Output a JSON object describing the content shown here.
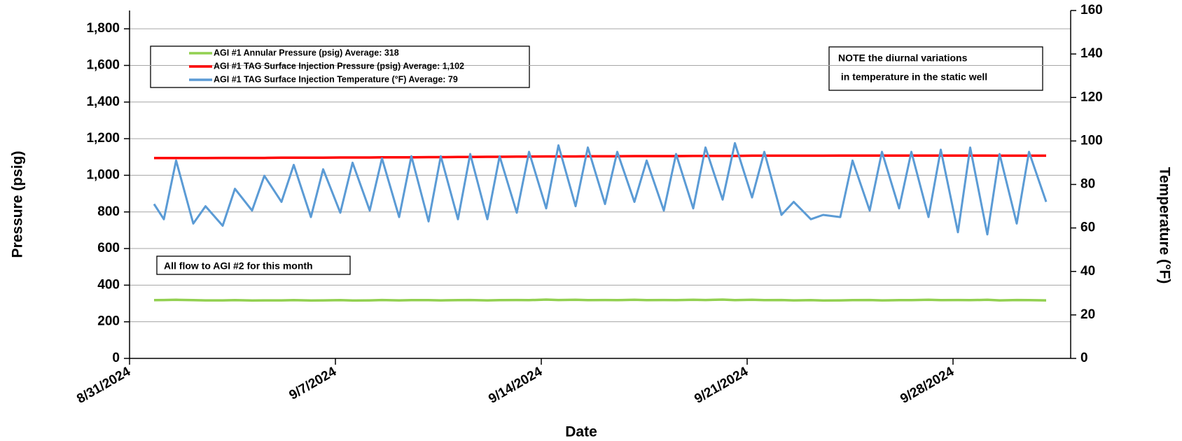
{
  "chart_data": {
    "type": "line",
    "x_label": "Date",
    "y_label": "Pressure (psig)",
    "y2_label": "Temperature (°F)",
    "annotations": [
      [
        "NOTE the diurnal variations",
        " in temperature in the static well"
      ],
      [
        "All flow to AGI #2 for this month"
      ]
    ],
    "x": [
      "8/31/2024 20:00",
      "9/1/2024 04:00",
      "9/1/2024 14:00",
      "9/2/2024 04:00",
      "9/2/2024 14:00",
      "9/3/2024 04:00",
      "9/3/2024 14:00",
      "9/4/2024 04:00",
      "9/4/2024 14:00",
      "9/5/2024 04:00",
      "9/5/2024 14:00",
      "9/6/2024 04:00",
      "9/6/2024 14:00",
      "9/7/2024 04:00",
      "9/7/2024 14:00",
      "9/8/2024 04:00",
      "9/8/2024 14:00",
      "9/9/2024 04:00",
      "9/9/2024 14:00",
      "9/10/2024 04:00",
      "9/10/2024 14:00",
      "9/11/2024 04:00",
      "9/11/2024 14:00",
      "9/12/2024 04:00",
      "9/12/2024 14:00",
      "9/13/2024 04:00",
      "9/13/2024 14:00",
      "9/14/2024 04:00",
      "9/14/2024 14:00",
      "9/15/2024 04:00",
      "9/15/2024 14:00",
      "9/16/2024 04:00",
      "9/16/2024 14:00",
      "9/17/2024 04:00",
      "9/17/2024 14:00",
      "9/18/2024 04:00",
      "9/18/2024 14:00",
      "9/19/2024 04:00",
      "9/19/2024 14:00",
      "9/20/2024 04:00",
      "9/20/2024 14:00",
      "9/21/2024 04:00",
      "9/21/2024 14:00",
      "9/22/2024 04:00",
      "9/22/2024 14:00",
      "9/23/2024 04:00",
      "9/23/2024 14:00",
      "9/24/2024 04:00",
      "9/24/2024 14:00",
      "9/25/2024 04:00",
      "9/25/2024 14:00",
      "9/26/2024 04:00",
      "9/26/2024 14:00",
      "9/27/2024 04:00",
      "9/27/2024 14:00",
      "9/28/2024 04:00",
      "9/28/2024 14:00",
      "9/29/2024 04:00",
      "9/29/2024 14:00",
      "9/30/2024 04:00",
      "9/30/2024 14:00",
      "10/1/2024 04:00"
    ],
    "series": [
      {
        "name": "AGI #1 Annular Pressure (psig) Average: 318",
        "color": "#92d050",
        "values": [
          318,
          319,
          320,
          318,
          317,
          317,
          318,
          316,
          317,
          317,
          318,
          316,
          317,
          318,
          316,
          317,
          319,
          317,
          318,
          318,
          317,
          318,
          319,
          317,
          318,
          319,
          318,
          321,
          319,
          320,
          318,
          319,
          318,
          320,
          318,
          319,
          318,
          320,
          319,
          321,
          318,
          320,
          318,
          319,
          317,
          318,
          316,
          317,
          318,
          319,
          317,
          318,
          318,
          320,
          318,
          319,
          318,
          320,
          317,
          319,
          318,
          317
        ]
      },
      {
        "name": "AGI #1 TAG Surface Injection Pressure (psig) Average: 1,102",
        "color": "#ff0000",
        "values": [
          1094,
          1094,
          1094,
          1094,
          1094,
          1095,
          1095,
          1095,
          1095,
          1096,
          1096,
          1096,
          1096,
          1097,
          1097,
          1097,
          1098,
          1098,
          1098,
          1099,
          1099,
          1100,
          1100,
          1101,
          1101,
          1102,
          1102,
          1103,
          1103,
          1103,
          1104,
          1104,
          1104,
          1105,
          1105,
          1105,
          1105,
          1106,
          1106,
          1106,
          1106,
          1107,
          1107,
          1107,
          1107,
          1107,
          1107,
          1108,
          1108,
          1108,
          1108,
          1108,
          1108,
          1108,
          1108,
          1108,
          1108,
          1108,
          1107,
          1107,
          1107,
          1107
        ]
      },
      {
        "name": "AGI #1 TAG Surface Injection Temperature (°F) Average: 79",
        "color": "#5b9bd5",
        "axis": "y2",
        "values": [
          71,
          64,
          91,
          62,
          70,
          61,
          78,
          68,
          84,
          72,
          89,
          65,
          87,
          67,
          90,
          68,
          92,
          65,
          93,
          63,
          93,
          64,
          94,
          64,
          93,
          67,
          95,
          69,
          98,
          70,
          97,
          71,
          95,
          72,
          91,
          68,
          94,
          69,
          97,
          73,
          99,
          74,
          95,
          66,
          72,
          64,
          66,
          65,
          91,
          68,
          95,
          69,
          95,
          65,
          96,
          58,
          97,
          57,
          94,
          62,
          95,
          72
        ]
      }
    ],
    "xlim": [
      "8/31/2024",
      "10/2/2024"
    ],
    "xticks": [
      "8/31/2024",
      "9/7/2024",
      "9/14/2024",
      "9/21/2024",
      "9/28/2024"
    ],
    "ylim": [
      0,
      1900
    ],
    "yticks": [
      0,
      200,
      400,
      600,
      800,
      {
        "value": 1000,
        "label": "1,000"
      },
      {
        "value": 1200,
        "label": "1,200"
      },
      {
        "value": 1400,
        "label": "1,400"
      },
      {
        "value": 1600,
        "label": "1,600"
      },
      {
        "value": 1800,
        "label": "1,800"
      }
    ],
    "y2lim": [
      0,
      160
    ],
    "y2ticks": [
      0,
      20,
      40,
      60,
      80,
      100,
      120,
      140,
      160
    ],
    "grid": true
  }
}
